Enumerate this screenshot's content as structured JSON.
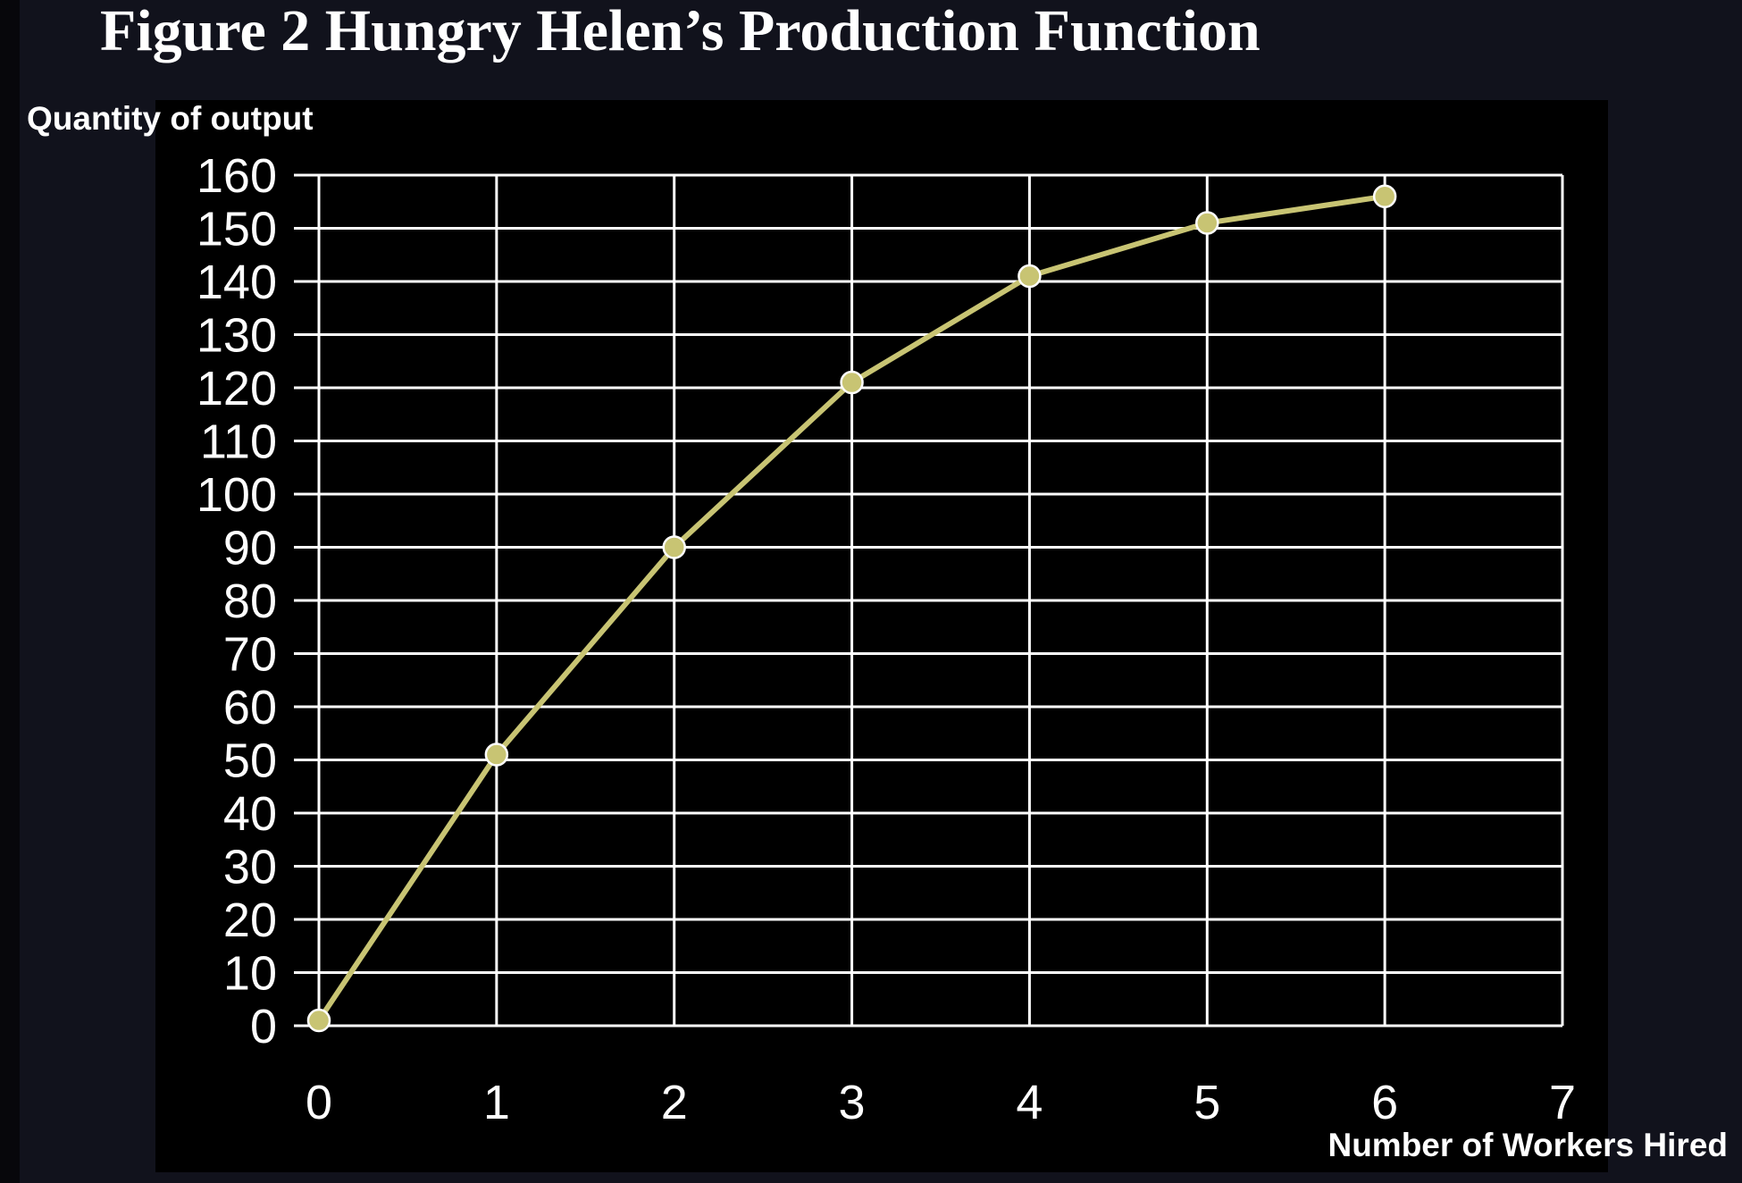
{
  "chart_data": {
    "type": "line",
    "title": "Figure 2 Hungry Helen’s Production Function",
    "xlabel": "Number of Workers Hired",
    "ylabel": "Quantity of output",
    "x_ticks": [
      "0",
      "1",
      "2",
      "3",
      "4",
      "5",
      "6",
      "7"
    ],
    "y_ticks": [
      "0",
      "10",
      "20",
      "30",
      "40",
      "50",
      "60",
      "70",
      "80",
      "90",
      "100",
      "110",
      "120",
      "130",
      "140",
      "150",
      "160"
    ],
    "xlim": [
      0,
      7
    ],
    "ylim": [
      0,
      160
    ],
    "grid": true,
    "series": [
      {
        "x": [
          0,
          1,
          2,
          3,
          4,
          5,
          6
        ],
        "y": [
          1,
          51,
          90,
          121,
          141,
          151,
          156
        ]
      }
    ],
    "colors": {
      "line": "#c8c473",
      "marker": "#c8c473",
      "marker_edge": "#ffffff",
      "grid": "#ffffff",
      "plot_background": "#000000",
      "page_background": "#11121c"
    }
  }
}
